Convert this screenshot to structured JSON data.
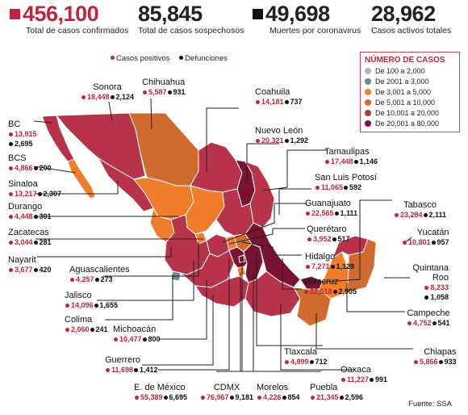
{
  "stats": [
    {
      "value": "456,100",
      "label": "Total de casos confirmados",
      "marker": "#c0253b"
    },
    {
      "value": "85,845",
      "label": "Total de casos sospechosos",
      "marker": ""
    },
    {
      "value": "49,698",
      "label": "Muertes por coronavirus",
      "marker": "#111111"
    },
    {
      "value": "28,962",
      "label": "Casos activos totales",
      "marker": ""
    }
  ],
  "legend": {
    "positive": "Casos positivos",
    "deaths": "Defunciones"
  },
  "scale": {
    "title": "NÚMERO DE CASOS",
    "items": [
      {
        "label": "De 100 a 2,000",
        "color": "#a9b7c2"
      },
      {
        "label": "De 2001 a 3,000",
        "color": "#6f8796"
      },
      {
        "label": "De 3,001 a 5,000",
        "color": "#f07d2a"
      },
      {
        "label": "De 5,001 a 10,000",
        "color": "#d06a2e"
      },
      {
        "label": "De 10,001 a 20,000",
        "color": "#b8334a"
      },
      {
        "label": "De 20,001 a 80,000",
        "color": "#7a1332"
      }
    ]
  },
  "states": [
    {
      "name": "Sonora",
      "positive": "18,448",
      "deaths": "2,124"
    },
    {
      "name": "Chihuahua",
      "positive": "5,587",
      "deaths": "931"
    },
    {
      "name": "Coahuila",
      "positive": "14,181",
      "deaths": "737"
    },
    {
      "name": "BC",
      "positive": "13,915",
      "deaths": "2,695"
    },
    {
      "name": "BCS",
      "positive": "4,866",
      "deaths": "200"
    },
    {
      "name": "Nuevo León",
      "positive": "20,321",
      "deaths": "1,292"
    },
    {
      "name": "Tamaulipas",
      "positive": "17,448",
      "deaths": "1,146"
    },
    {
      "name": "Sinaloa",
      "positive": "13,217",
      "deaths": "2,307"
    },
    {
      "name": "San Luis Potosí",
      "positive": "11,065",
      "deaths": "592"
    },
    {
      "name": "Durango",
      "positive": "4,448",
      "deaths": "301"
    },
    {
      "name": "Guanajuato",
      "positive": "22,565",
      "deaths": "1,111"
    },
    {
      "name": "Tabasco",
      "positive": "23,284",
      "deaths": "2,111"
    },
    {
      "name": "Zacatecas",
      "positive": "3,044",
      "deaths": "281"
    },
    {
      "name": "Querétaro",
      "positive": "3,952",
      "deaths": "517"
    },
    {
      "name": "Yucatán",
      "positive": "10,801",
      "deaths": "957"
    },
    {
      "name": "Nayarit",
      "positive": "3,677",
      "deaths": "420"
    },
    {
      "name": "Hidalgo",
      "positive": "7,271",
      "deaths": "1,129"
    },
    {
      "name": "Quintana Roo",
      "positive": "8,233",
      "deaths": "1,058"
    },
    {
      "name": "Aguascalientes",
      "positive": "4,257",
      "deaths": "273"
    },
    {
      "name": "Veracruz",
      "positive": "22,518",
      "deaths": "2,905"
    },
    {
      "name": "Jalisco",
      "positive": "14,096",
      "deaths": "1,655"
    },
    {
      "name": "Campeche",
      "positive": "4,752",
      "deaths": "541"
    },
    {
      "name": "Colima",
      "positive": "2,060",
      "deaths": "241"
    },
    {
      "name": "Michoacán",
      "positive": "10,477",
      "deaths": "800"
    },
    {
      "name": "Tlaxcala",
      "positive": "4,899",
      "deaths": "712"
    },
    {
      "name": "Chiapas",
      "positive": "5,866",
      "deaths": "933"
    },
    {
      "name": "Guerrero",
      "positive": "11,698",
      "deaths": "1,412"
    },
    {
      "name": "Oaxaca",
      "positive": "11,227",
      "deaths": "991"
    },
    {
      "name": "E. de México",
      "positive": "55,389",
      "deaths": "6,695"
    },
    {
      "name": "CDMX",
      "positive": "76,967",
      "deaths": "9,181"
    },
    {
      "name": "Morelos",
      "positive": "4,226",
      "deaths": "854"
    },
    {
      "name": "Puebla",
      "positive": "21,345",
      "deaths": "2,596"
    }
  ],
  "source": "Fuente: SSA"
}
